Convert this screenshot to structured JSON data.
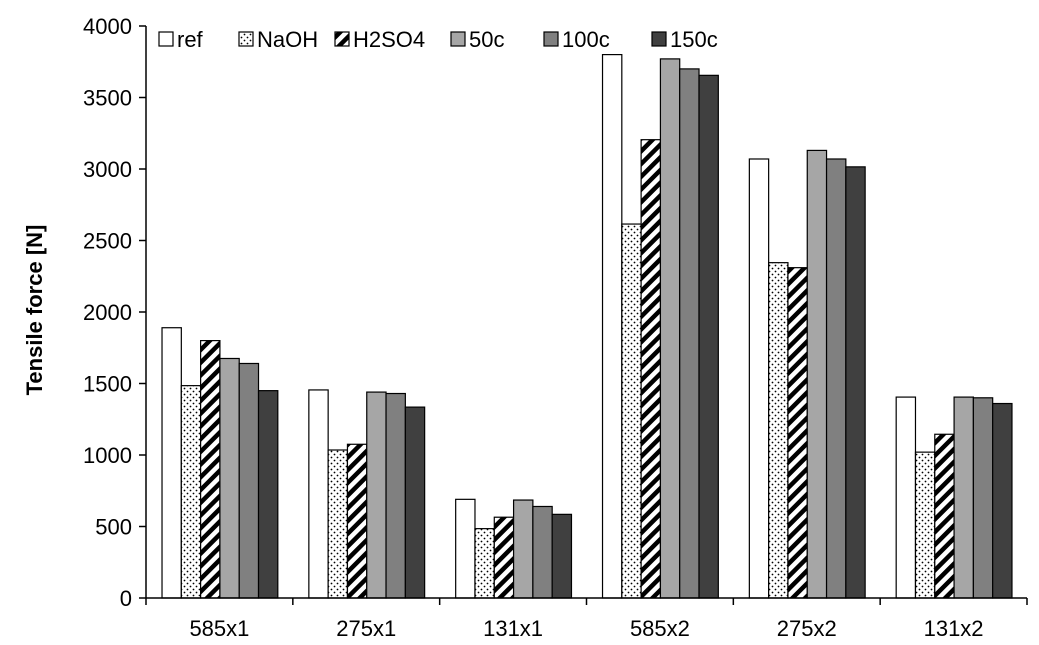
{
  "chart_data": {
    "type": "bar",
    "title": "",
    "xlabel": "",
    "ylabel": "Tensile force [N]",
    "ylim": [
      0,
      4000
    ],
    "yticks": [
      0,
      500,
      1000,
      1500,
      2000,
      2500,
      3000,
      3500,
      4000
    ],
    "grid": false,
    "legend_position": "top",
    "categories": [
      "585x1",
      "275x1",
      "131x1",
      "585x2",
      "275x2",
      "131x2"
    ],
    "series": [
      {
        "name": "ref",
        "pattern": "solid",
        "color": "#ffffff",
        "values": [
          1890,
          1455,
          690,
          3800,
          3070,
          1405
        ]
      },
      {
        "name": "NaOH",
        "pattern": "dots",
        "color": "#ffffff",
        "values": [
          1485,
          1035,
          485,
          2615,
          2345,
          1020
        ]
      },
      {
        "name": "H2SO4",
        "pattern": "diagonal",
        "color": "#ffffff",
        "values": [
          1800,
          1075,
          565,
          3205,
          2310,
          1145
        ]
      },
      {
        "name": "50c",
        "pattern": "solid",
        "color": "#a6a6a6",
        "values": [
          1675,
          1440,
          685,
          3770,
          3130,
          1405
        ]
      },
      {
        "name": "100c",
        "pattern": "solid",
        "color": "#808080",
        "values": [
          1640,
          1430,
          640,
          3700,
          3070,
          1400
        ]
      },
      {
        "name": "150c",
        "pattern": "solid",
        "color": "#404040",
        "values": [
          1450,
          1335,
          585,
          3655,
          3015,
          1360
        ]
      }
    ]
  }
}
